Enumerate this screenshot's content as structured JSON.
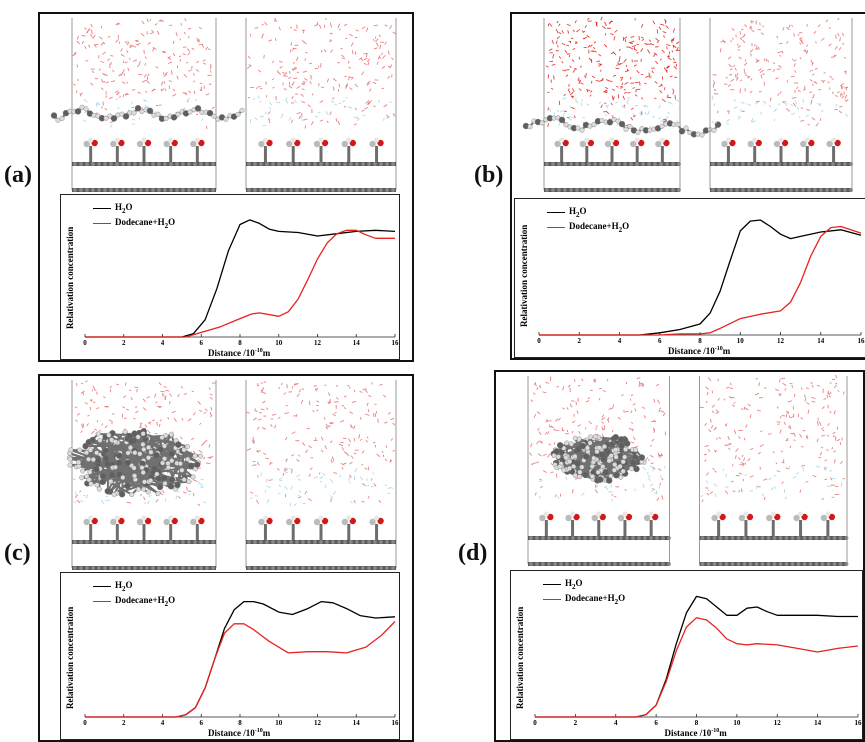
{
  "panels": [
    {
      "id": "a",
      "label": "(a)"
    },
    {
      "id": "b",
      "label": "(b)"
    },
    {
      "id": "c",
      "label": "(c)"
    },
    {
      "id": "d",
      "label": "(d)"
    }
  ],
  "chart_data": [
    {
      "panel": "a",
      "type": "line",
      "xlabel": "Distance /10-10m",
      "ylabel": "Relativation concentration",
      "xlim": [
        0,
        16
      ],
      "xticks": [
        0,
        2,
        4,
        6,
        8,
        10,
        12,
        14,
        16
      ],
      "ylim": [
        0,
        1.15
      ],
      "series": [
        {
          "name": "H2O",
          "color": "#000000",
          "x": [
            0,
            4,
            5,
            5.6,
            6.2,
            6.8,
            7.4,
            8.0,
            8.5,
            9.0,
            9.5,
            10,
            11,
            12,
            13,
            14,
            15,
            16
          ],
          "y": [
            0,
            0,
            0,
            0.03,
            0.15,
            0.42,
            0.75,
            0.98,
            1.02,
            0.99,
            0.94,
            0.92,
            0.91,
            0.88,
            0.9,
            0.92,
            0.93,
            0.92
          ]
        },
        {
          "name": "Dodecane+H2O",
          "color": "#e8231f",
          "x": [
            0,
            4,
            5.2,
            6,
            7,
            8,
            8.6,
            9,
            10,
            10.5,
            11,
            11.5,
            12,
            12.5,
            13,
            13.5,
            14,
            14.5,
            15,
            16
          ],
          "y": [
            0,
            0,
            0,
            0.04,
            0.09,
            0.16,
            0.2,
            0.21,
            0.18,
            0.22,
            0.33,
            0.5,
            0.68,
            0.82,
            0.9,
            0.93,
            0.93,
            0.89,
            0.86,
            0.86
          ]
        }
      ]
    },
    {
      "panel": "b",
      "type": "line",
      "xlabel": "Distance /10-10m",
      "ylabel": "Relativation concentration",
      "xlim": [
        0,
        16
      ],
      "xticks": [
        0,
        2,
        4,
        6,
        8,
        10,
        12,
        14,
        16
      ],
      "ylim": [
        0,
        1.15
      ],
      "series": [
        {
          "name": "H2O",
          "color": "#000000",
          "x": [
            0,
            5,
            6,
            7,
            8,
            8.5,
            9,
            9.5,
            10,
            10.5,
            11,
            11.5,
            12,
            12.5,
            13,
            14,
            15,
            16
          ],
          "y": [
            0,
            0,
            0.02,
            0.05,
            0.1,
            0.2,
            0.4,
            0.68,
            0.95,
            1.04,
            1.05,
            0.99,
            0.92,
            0.88,
            0.9,
            0.94,
            0.96,
            0.91
          ]
        },
        {
          "name": "Dodecane+H2O",
          "color": "#e8231f",
          "x": [
            0,
            6,
            7,
            8,
            8.5,
            9,
            10,
            11,
            12,
            12.5,
            13,
            13.5,
            14,
            14.5,
            15,
            15.5,
            16
          ],
          "y": [
            0,
            0,
            0.01,
            0.01,
            0.02,
            0.06,
            0.15,
            0.19,
            0.22,
            0.3,
            0.48,
            0.72,
            0.9,
            0.98,
            0.99,
            0.96,
            0.93
          ]
        }
      ]
    },
    {
      "panel": "c",
      "type": "line",
      "xlabel": "Distance /10-10m",
      "ylabel": "Relativation concentration",
      "xlim": [
        0,
        16
      ],
      "xticks": [
        0,
        2,
        4,
        6,
        8,
        10,
        12,
        14,
        16
      ],
      "ylim": [
        0,
        1.15
      ],
      "series": [
        {
          "name": "H2O",
          "color": "#000000",
          "x": [
            0,
            4.7,
            5.2,
            5.7,
            6.2,
            6.7,
            7.2,
            7.7,
            8.2,
            8.7,
            9.2,
            10,
            10.7,
            11.5,
            12.2,
            12.8,
            13.5,
            14.2,
            15,
            16
          ],
          "y": [
            0,
            0,
            0.02,
            0.08,
            0.25,
            0.5,
            0.76,
            0.92,
            0.99,
            0.99,
            0.97,
            0.9,
            0.88,
            0.93,
            0.99,
            0.98,
            0.93,
            0.87,
            0.85,
            0.86
          ]
        },
        {
          "name": "Dodecane+H2O",
          "color": "#e8231f",
          "x": [
            0,
            4.7,
            5.2,
            5.7,
            6.2,
            6.7,
            7.2,
            7.7,
            8.2,
            8.7,
            9.5,
            10.5,
            11.5,
            12.5,
            13.5,
            14.5,
            15.3,
            16
          ],
          "y": [
            0,
            0,
            0.02,
            0.08,
            0.25,
            0.5,
            0.72,
            0.8,
            0.8,
            0.75,
            0.65,
            0.55,
            0.56,
            0.56,
            0.55,
            0.6,
            0.7,
            0.82
          ]
        }
      ]
    },
    {
      "panel": "d",
      "type": "line",
      "xlabel": "Distance /10-10m",
      "ylabel": "Relativation concentration",
      "xlim": [
        0,
        16
      ],
      "xticks": [
        0,
        2,
        4,
        6,
        8,
        10,
        12,
        14,
        16
      ],
      "ylim": [
        0,
        1.15
      ],
      "series": [
        {
          "name": "H2O",
          "color": "#000000",
          "x": [
            0,
            5,
            5.5,
            6,
            6.5,
            7,
            7.5,
            8,
            8.5,
            9,
            9.5,
            10,
            10.5,
            11,
            11.5,
            12,
            13,
            14,
            15,
            16
          ],
          "y": [
            0,
            0,
            0.02,
            0.1,
            0.32,
            0.62,
            0.88,
            1.02,
            1.0,
            0.93,
            0.86,
            0.86,
            0.92,
            0.93,
            0.89,
            0.86,
            0.86,
            0.86,
            0.85,
            0.85
          ]
        },
        {
          "name": "Dodecane+H2O",
          "color": "#e8231f",
          "x": [
            0,
            5,
            5.5,
            6,
            6.5,
            7,
            7.5,
            8,
            8.5,
            9,
            9.5,
            10,
            10.5,
            11,
            12,
            13,
            14,
            15,
            16
          ],
          "y": [
            0,
            0,
            0.02,
            0.1,
            0.3,
            0.56,
            0.76,
            0.84,
            0.82,
            0.75,
            0.66,
            0.62,
            0.61,
            0.62,
            0.61,
            0.58,
            0.55,
            0.58,
            0.6
          ]
        }
      ]
    }
  ]
}
